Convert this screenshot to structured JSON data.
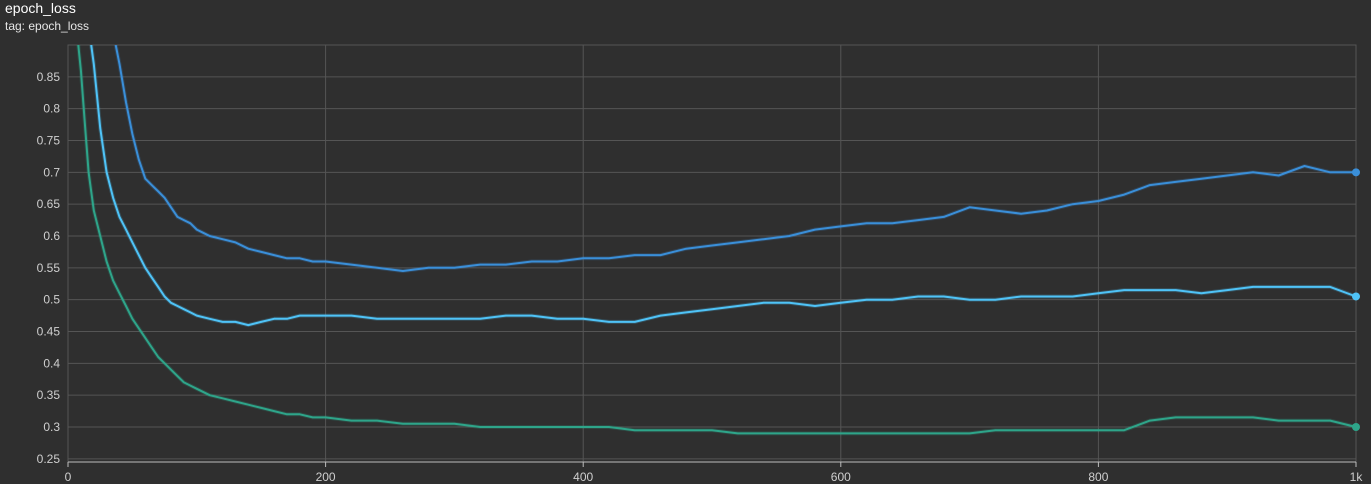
{
  "header": {
    "title": "epoch_loss",
    "tag": "tag: epoch_loss"
  },
  "chart_data": {
    "type": "line",
    "title": "epoch_loss",
    "subtitle": "tag: epoch_loss",
    "xlabel": "",
    "ylabel": "",
    "xlim": [
      0,
      1000
    ],
    "ylim": [
      0.245,
      0.9
    ],
    "x_ticks": [
      0,
      200,
      400,
      600,
      800,
      1000
    ],
    "x_tick_labels": [
      "0",
      "200",
      "400",
      "600",
      "800",
      "1k"
    ],
    "y_ticks": [
      0.25,
      0.3,
      0.35,
      0.4,
      0.45,
      0.5,
      0.55,
      0.6,
      0.65,
      0.7,
      0.75,
      0.8,
      0.85
    ],
    "y_tick_labels": [
      "0.25",
      "0.3",
      "0.35",
      "0.4",
      "0.45",
      "0.5",
      "0.55",
      "0.6",
      "0.65",
      "0.7",
      "0.75",
      "0.8",
      "0.85"
    ],
    "grid": true,
    "background_color": "#2f2f2f",
    "grid_color": "#555555",
    "series": [
      {
        "color": "#3a8fd9",
        "x": [
          37,
          40,
          45,
          50,
          55,
          60,
          65,
          70,
          75,
          80,
          85,
          90,
          95,
          100,
          105,
          110,
          120,
          130,
          140,
          150,
          160,
          170,
          180,
          190,
          200,
          220,
          240,
          260,
          280,
          300,
          320,
          340,
          360,
          380,
          400,
          420,
          440,
          460,
          480,
          500,
          520,
          540,
          560,
          580,
          600,
          620,
          640,
          660,
          680,
          700,
          720,
          740,
          760,
          780,
          800,
          820,
          840,
          860,
          880,
          900,
          920,
          940,
          960,
          980,
          1000
        ],
        "values": [
          0.9,
          0.87,
          0.81,
          0.76,
          0.72,
          0.69,
          0.68,
          0.67,
          0.66,
          0.645,
          0.63,
          0.625,
          0.62,
          0.61,
          0.605,
          0.6,
          0.595,
          0.59,
          0.58,
          0.575,
          0.57,
          0.565,
          0.565,
          0.56,
          0.56,
          0.555,
          0.55,
          0.545,
          0.55,
          0.55,
          0.555,
          0.555,
          0.56,
          0.56,
          0.565,
          0.565,
          0.57,
          0.57,
          0.58,
          0.585,
          0.59,
          0.595,
          0.6,
          0.61,
          0.615,
          0.62,
          0.62,
          0.625,
          0.63,
          0.645,
          0.64,
          0.635,
          0.64,
          0.65,
          0.655,
          0.665,
          0.68,
          0.685,
          0.69,
          0.695,
          0.7,
          0.695,
          0.71,
          0.7,
          0.7
        ]
      },
      {
        "color": "#4fc3f7",
        "x": [
          18,
          20,
          25,
          30,
          35,
          40,
          45,
          50,
          55,
          60,
          65,
          70,
          75,
          80,
          85,
          90,
          95,
          100,
          110,
          120,
          130,
          140,
          150,
          160,
          170,
          180,
          190,
          200,
          220,
          240,
          260,
          280,
          300,
          320,
          340,
          360,
          380,
          400,
          420,
          440,
          460,
          480,
          500,
          520,
          540,
          560,
          580,
          600,
          620,
          640,
          660,
          680,
          700,
          720,
          740,
          760,
          780,
          800,
          820,
          840,
          860,
          880,
          900,
          920,
          940,
          960,
          980,
          1000
        ],
        "values": [
          0.9,
          0.87,
          0.77,
          0.7,
          0.66,
          0.63,
          0.61,
          0.59,
          0.57,
          0.55,
          0.535,
          0.52,
          0.505,
          0.495,
          0.49,
          0.485,
          0.48,
          0.475,
          0.47,
          0.465,
          0.465,
          0.46,
          0.465,
          0.47,
          0.47,
          0.475,
          0.475,
          0.475,
          0.475,
          0.47,
          0.47,
          0.47,
          0.47,
          0.47,
          0.475,
          0.475,
          0.47,
          0.47,
          0.465,
          0.465,
          0.475,
          0.48,
          0.485,
          0.49,
          0.495,
          0.495,
          0.49,
          0.495,
          0.5,
          0.5,
          0.505,
          0.505,
          0.5,
          0.5,
          0.505,
          0.505,
          0.505,
          0.51,
          0.515,
          0.515,
          0.515,
          0.51,
          0.515,
          0.52,
          0.52,
          0.52,
          0.52,
          0.505
        ]
      },
      {
        "color": "#2ea58a",
        "x": [
          8,
          10,
          13,
          16,
          20,
          25,
          30,
          35,
          40,
          45,
          50,
          55,
          60,
          65,
          70,
          75,
          80,
          85,
          90,
          95,
          100,
          110,
          120,
          130,
          140,
          150,
          160,
          170,
          180,
          190,
          200,
          220,
          240,
          260,
          280,
          300,
          320,
          340,
          360,
          380,
          400,
          420,
          440,
          460,
          480,
          500,
          520,
          540,
          560,
          580,
          600,
          620,
          640,
          660,
          680,
          700,
          720,
          740,
          760,
          780,
          800,
          820,
          840,
          860,
          880,
          900,
          920,
          940,
          960,
          980,
          1000
        ],
        "values": [
          0.9,
          0.86,
          0.78,
          0.7,
          0.64,
          0.6,
          0.56,
          0.53,
          0.51,
          0.49,
          0.47,
          0.455,
          0.44,
          0.425,
          0.41,
          0.4,
          0.39,
          0.38,
          0.37,
          0.365,
          0.36,
          0.35,
          0.345,
          0.34,
          0.335,
          0.33,
          0.325,
          0.32,
          0.32,
          0.315,
          0.315,
          0.31,
          0.31,
          0.305,
          0.305,
          0.305,
          0.3,
          0.3,
          0.3,
          0.3,
          0.3,
          0.3,
          0.295,
          0.295,
          0.295,
          0.295,
          0.29,
          0.29,
          0.29,
          0.29,
          0.29,
          0.29,
          0.29,
          0.29,
          0.29,
          0.29,
          0.295,
          0.295,
          0.295,
          0.295,
          0.295,
          0.295,
          0.31,
          0.315,
          0.315,
          0.315,
          0.315,
          0.31,
          0.31,
          0.31,
          0.3
        ]
      }
    ]
  }
}
